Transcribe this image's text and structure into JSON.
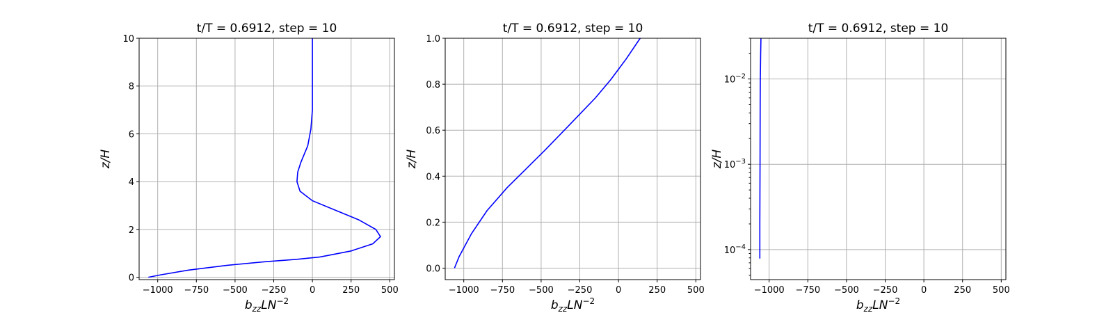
{
  "chart_data": [
    {
      "type": "line",
      "title": "t/T = 0.6912, step = 10",
      "xlabel_base": "b",
      "xlabel_sub": "zz",
      "xlabel_mid": "LN",
      "xlabel_sup": "−2",
      "ylabel": "z/H",
      "xlim": [
        -1120,
        530
      ],
      "ylim": [
        -0.1,
        10
      ],
      "yscale": "linear",
      "grid": true,
      "color": "#0000ff",
      "xticks": [
        -1000,
        -750,
        -500,
        -250,
        0,
        250,
        500
      ],
      "xtick_labels": [
        "−1000",
        "−750",
        "−500",
        "−250",
        "0",
        "250",
        "500"
      ],
      "yticks": [
        0,
        2,
        4,
        6,
        8,
        10
      ],
      "ytick_labels": [
        "0",
        "2",
        "4",
        "6",
        "8",
        "10"
      ],
      "series": [
        {
          "x": [
            -1060,
            -980,
            -800,
            -550,
            -300,
            -100,
            50,
            250,
            390,
            440,
            410,
            300,
            150,
            0,
            -80,
            -100,
            -95,
            -75,
            -30,
            -10,
            0,
            0,
            0
          ],
          "y": [
            0,
            0.1,
            0.3,
            0.5,
            0.65,
            0.75,
            0.85,
            1.1,
            1.4,
            1.7,
            2.0,
            2.4,
            2.8,
            3.2,
            3.6,
            4.0,
            4.4,
            4.8,
            5.5,
            6.2,
            7.0,
            8.5,
            10.0
          ]
        }
      ]
    },
    {
      "type": "line",
      "title": "t/T = 0.6912, step = 10",
      "xlabel_base": "b",
      "xlabel_sub": "zz",
      "xlabel_mid": "LN",
      "xlabel_sup": "−2",
      "ylabel": "z/H",
      "xlim": [
        -1120,
        530
      ],
      "ylim": [
        -0.05,
        1.0
      ],
      "yscale": "linear",
      "grid": true,
      "color": "#0000ff",
      "xticks": [
        -1000,
        -750,
        -500,
        -250,
        0,
        250,
        500
      ],
      "xtick_labels": [
        "−1000",
        "−750",
        "−500",
        "−250",
        "0",
        "250",
        "500"
      ],
      "yticks": [
        0,
        0.2,
        0.4,
        0.6,
        0.8,
        1.0
      ],
      "ytick_labels": [
        "0.0",
        "0.2",
        "0.4",
        "0.6",
        "0.8",
        "1.0"
      ],
      "series": [
        {
          "x": [
            -1060,
            -1030,
            -950,
            -850,
            -720,
            -600,
            -480,
            -350,
            -250,
            -150,
            -50,
            50,
            140
          ],
          "y": [
            0,
            0.05,
            0.15,
            0.25,
            0.35,
            0.43,
            0.51,
            0.6,
            0.67,
            0.74,
            0.82,
            0.91,
            1.0
          ]
        }
      ]
    },
    {
      "type": "line",
      "title": "t/T = 0.6912, step = 10",
      "xlabel_base": "b",
      "xlabel_sub": "zz",
      "xlabel_mid": "LN",
      "xlabel_sup": "−2",
      "ylabel": "z/H",
      "xlim": [
        -1120,
        530
      ],
      "ylim": [
        4.45e-05,
        0.03
      ],
      "yscale": "log",
      "grid": true,
      "color": "#0000ff",
      "xticks": [
        -1000,
        -750,
        -500,
        -250,
        0,
        250,
        500
      ],
      "xtick_labels": [
        "−1000",
        "−750",
        "−500",
        "−250",
        "0",
        "250",
        "500"
      ],
      "yticks_major": [
        0.0001,
        0.001,
        0.01
      ],
      "ytick_labels": [
        "10−4",
        "10−3",
        "10−2"
      ],
      "series": [
        {
          "x": [
            -1060,
            -1060,
            -1059,
            -1058,
            -1057,
            -1055,
            -1053
          ],
          "y": [
            7.85e-05,
            0.0002,
            0.001,
            0.005,
            0.01,
            0.02,
            0.03
          ]
        }
      ]
    }
  ]
}
